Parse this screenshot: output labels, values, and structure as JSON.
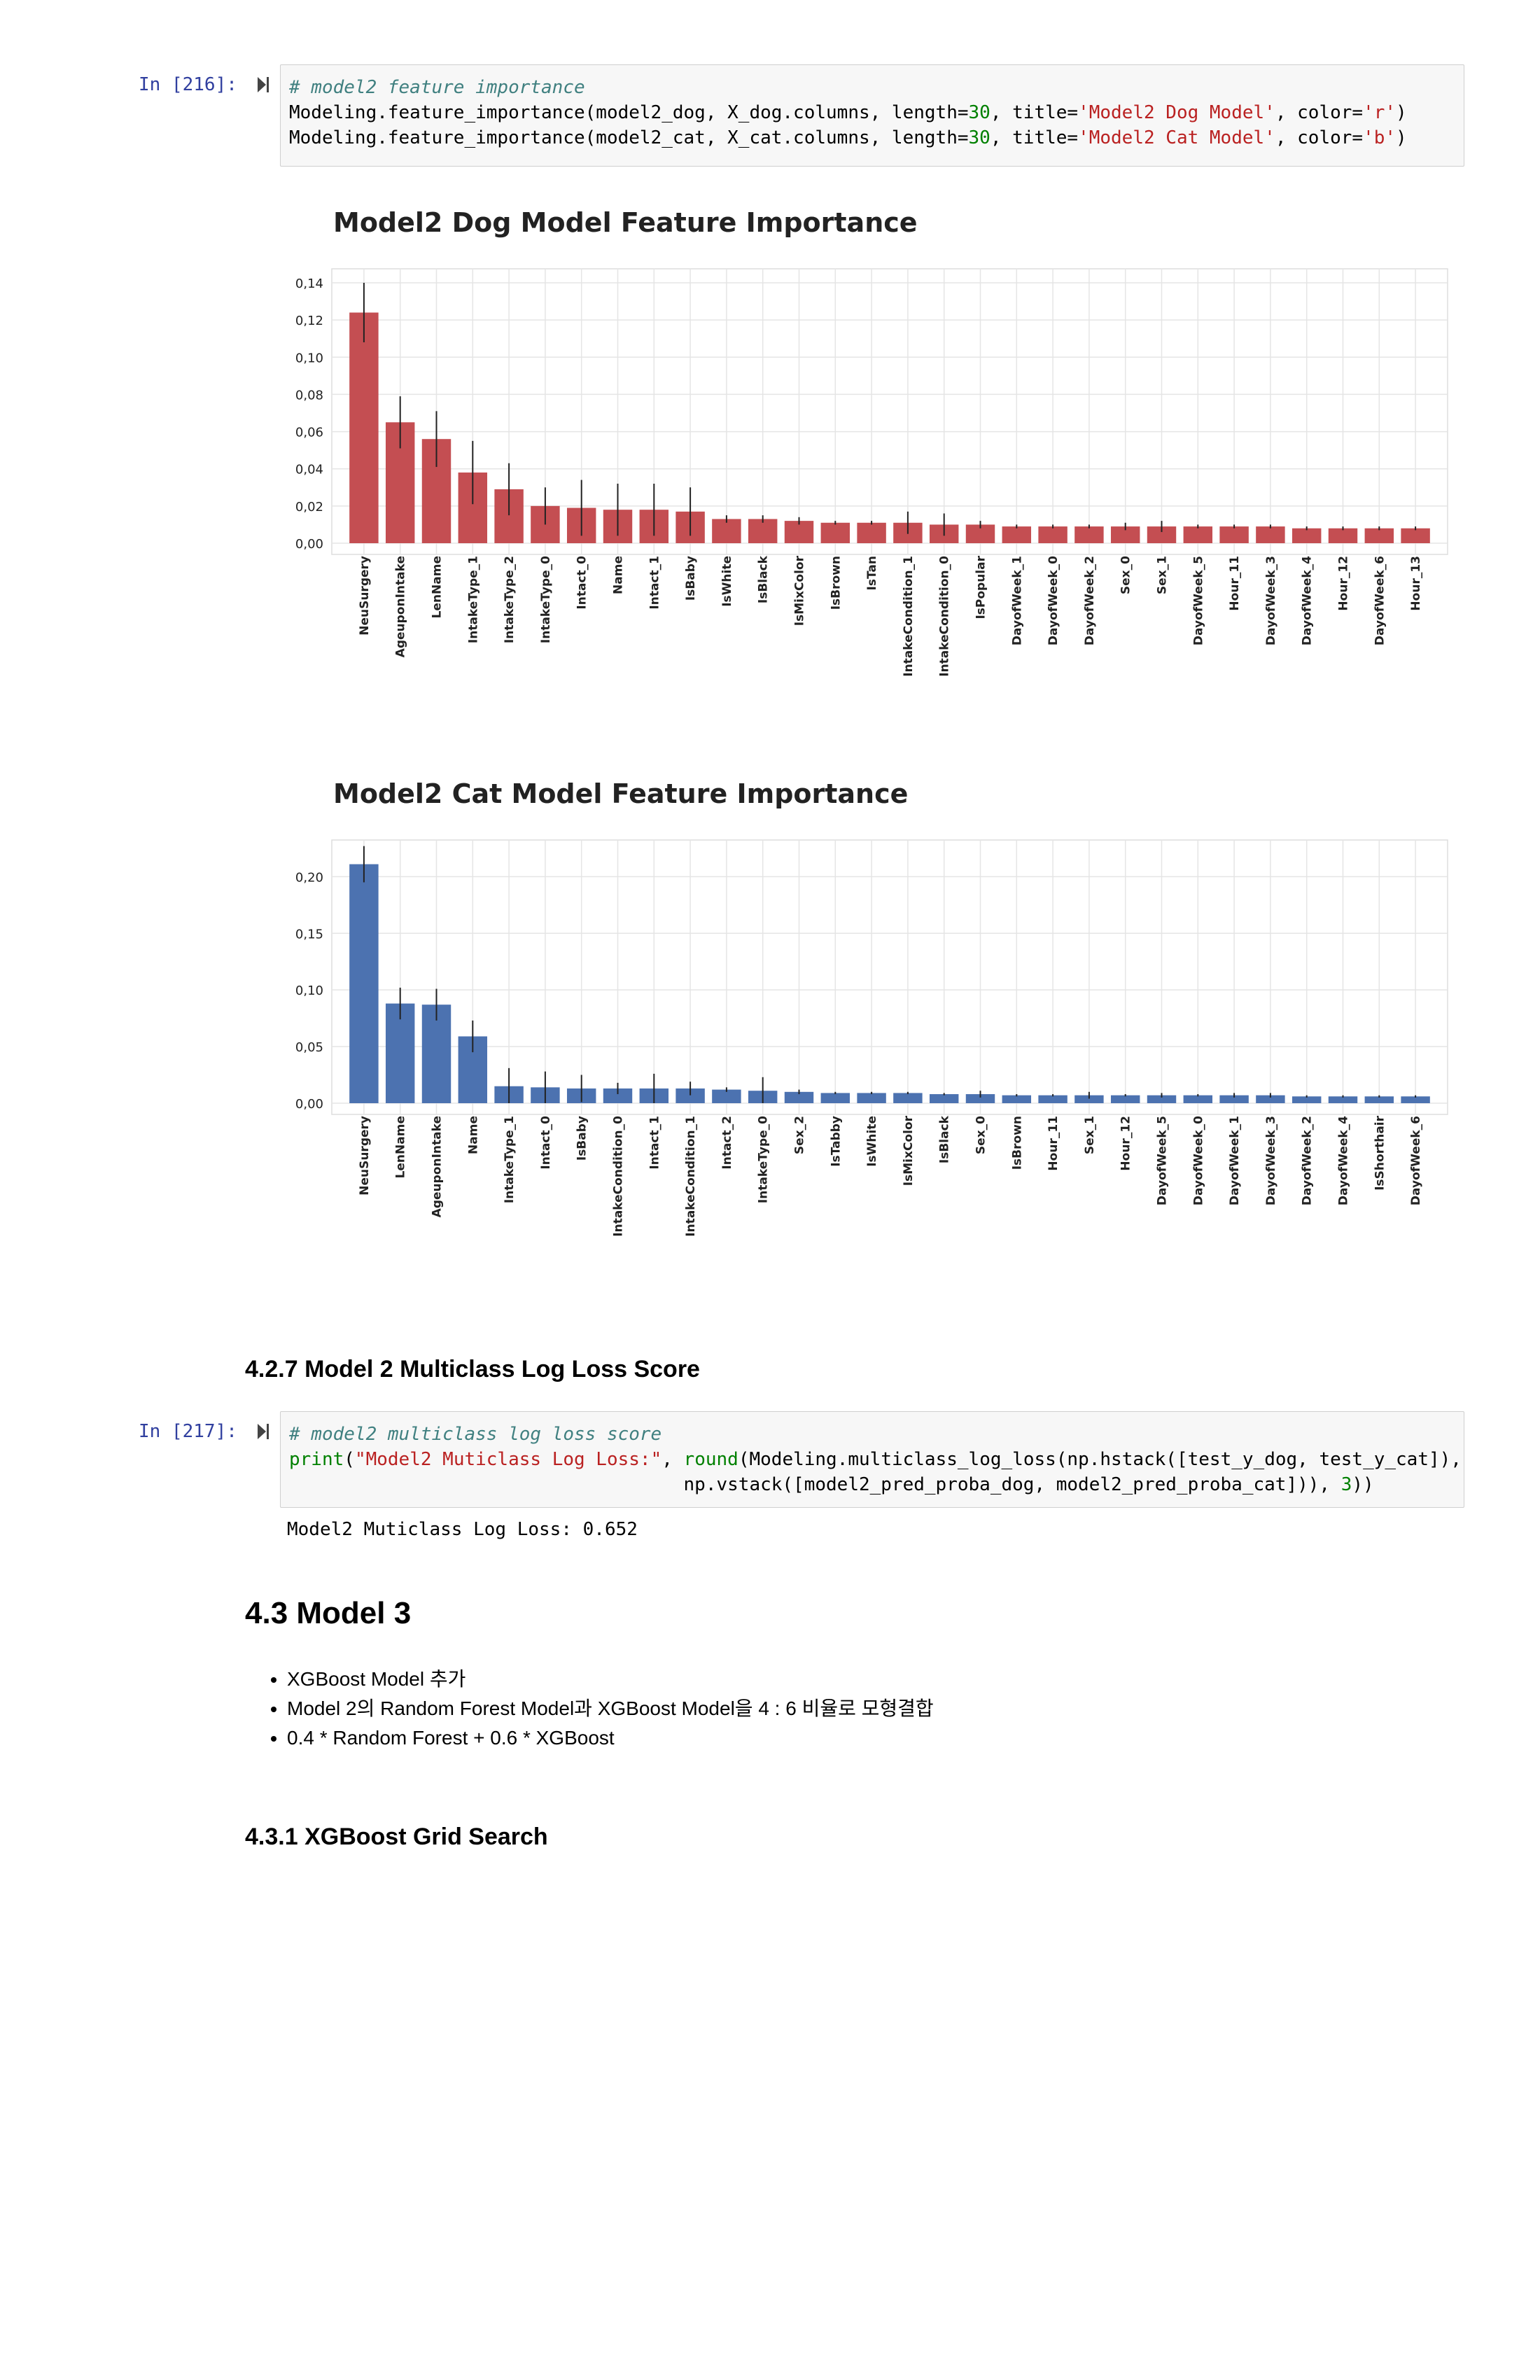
{
  "cells": [
    {
      "prompt": "In [216]:",
      "code": [
        [
          {
            "t": "cm",
            "v": "# model2 feature importance"
          }
        ],
        [
          {
            "t": "",
            "v": "Modeling.feature_importance(model2_dog, X_dog.columns, length="
          },
          {
            "t": "nm",
            "v": "30"
          },
          {
            "t": "",
            "v": ", title="
          },
          {
            "t": "st",
            "v": "'Model2 Dog Model'"
          },
          {
            "t": "",
            "v": ", color="
          },
          {
            "t": "st",
            "v": "'r'"
          },
          {
            "t": "",
            "v": ")"
          }
        ],
        [
          {
            "t": "",
            "v": "Modeling.feature_importance(model2_cat, X_cat.columns, length="
          },
          {
            "t": "nm",
            "v": "30"
          },
          {
            "t": "",
            "v": ", title="
          },
          {
            "t": "st",
            "v": "'Model2 Cat Model'"
          },
          {
            "t": "",
            "v": ", color="
          },
          {
            "t": "st",
            "v": "'b'"
          },
          {
            "t": "",
            "v": ")"
          }
        ]
      ]
    },
    {
      "prompt": "In [217]:",
      "code": [
        [
          {
            "t": "cm",
            "v": "# model2 multiclass log loss score"
          }
        ],
        [
          {
            "t": "nm",
            "v": "print"
          },
          {
            "t": "",
            "v": "("
          },
          {
            "t": "st",
            "v": "\"Model2 Muticlass Log Loss:\""
          },
          {
            "t": "",
            "v": ", "
          },
          {
            "t": "nm",
            "v": "round"
          },
          {
            "t": "",
            "v": "(Modeling.multiclass_log_loss(np.hstack([test_y_dog, test_y_cat]),"
          }
        ],
        [
          {
            "t": "",
            "v": "                                    np.vstack([model2_pred_proba_dog, model2_pred_proba_cat])), "
          },
          {
            "t": "nm",
            "v": "3"
          },
          {
            "t": "",
            "v": "))"
          }
        ]
      ],
      "output": "Model2 Muticlass Log Loss: 0.652"
    }
  ],
  "headings": {
    "h_427": "4.2.7 Model 2 Multiclass Log Loss Score",
    "h_43": "4.3 Model 3",
    "h_431": "4.3.1 XGBoost Grid Search"
  },
  "bullets": [
    "XGBoost Model 추가",
    "Model 2의 Random Forest Model과 XGBoost Model을 4 : 6 비율로 모형결합",
    "0.4 * Random Forest + 0.6 * XGBoost"
  ],
  "chart_data": [
    {
      "type": "bar",
      "title": "Model2 Dog Model Feature Importance",
      "color": "#c44e52",
      "ylim": [
        0,
        0.14
      ],
      "yticks": [
        "0,00",
        "0,02",
        "0,04",
        "0,06",
        "0,08",
        "0,10",
        "0,12",
        "0,14"
      ],
      "grid": true,
      "categories": [
        "NeuSurgery",
        "AgeuponIntake",
        "LenName",
        "IntakeType_1",
        "IntakeType_2",
        "IntakeType_0",
        "Intact_0",
        "Name",
        "Intact_1",
        "IsBaby",
        "IsWhite",
        "IsBlack",
        "IsMixColor",
        "IsBrown",
        "IsTan",
        "IntakeCondition_1",
        "IntakeCondition_0",
        "IsPopular",
        "DayofWeek_1",
        "DayofWeek_0",
        "DayofWeek_2",
        "Sex_0",
        "Sex_1",
        "DayofWeek_5",
        "Hour_11",
        "DayofWeek_3",
        "DayofWeek_4",
        "Hour_12",
        "DayofWeek_6",
        "Hour_13"
      ],
      "values": [
        0.124,
        0.065,
        0.056,
        0.038,
        0.029,
        0.02,
        0.019,
        0.018,
        0.018,
        0.017,
        0.013,
        0.013,
        0.012,
        0.011,
        0.011,
        0.011,
        0.01,
        0.01,
        0.009,
        0.009,
        0.009,
        0.009,
        0.009,
        0.009,
        0.009,
        0.009,
        0.008,
        0.008,
        0.008,
        0.008
      ],
      "errors": [
        0.016,
        0.014,
        0.015,
        0.017,
        0.014,
        0.01,
        0.015,
        0.014,
        0.014,
        0.013,
        0.002,
        0.002,
        0.002,
        0.001,
        0.001,
        0.006,
        0.006,
        0.002,
        0.001,
        0.001,
        0.001,
        0.002,
        0.003,
        0.001,
        0.001,
        0.001,
        0.001,
        0.001,
        0.001,
        0.001
      ]
    },
    {
      "type": "bar",
      "title": "Model2 Cat Model Feature Importance",
      "color": "#4c72b0",
      "ylim": [
        0,
        0.22
      ],
      "yticks": [
        "0,00",
        "0,05",
        "0,10",
        "0,15",
        "0,20"
      ],
      "grid": true,
      "categories": [
        "NeuSurgery",
        "LenName",
        "AgeuponIntake",
        "Name",
        "IntakeType_1",
        "Intact_0",
        "IsBaby",
        "IntakeCondition_0",
        "Intact_1",
        "IntakeCondition_1",
        "Intact_2",
        "IntakeType_0",
        "Sex_2",
        "IsTabby",
        "IsWhite",
        "IsMixColor",
        "IsBlack",
        "Sex_0",
        "IsBrown",
        "Hour_11",
        "Sex_1",
        "Hour_12",
        "DayofWeek_5",
        "DayofWeek_0",
        "DayofWeek_1",
        "DayofWeek_3",
        "DayofWeek_2",
        "DayofWeek_4",
        "IsShorthair",
        "DayofWeek_6"
      ],
      "values": [
        0.211,
        0.088,
        0.087,
        0.059,
        0.015,
        0.014,
        0.013,
        0.013,
        0.013,
        0.013,
        0.012,
        0.011,
        0.01,
        0.009,
        0.009,
        0.009,
        0.008,
        0.008,
        0.007,
        0.007,
        0.007,
        0.007,
        0.007,
        0.007,
        0.007,
        0.007,
        0.006,
        0.006,
        0.006,
        0.006
      ],
      "errors": [
        0.016,
        0.014,
        0.014,
        0.014,
        0.016,
        0.014,
        0.012,
        0.005,
        0.013,
        0.006,
        0.002,
        0.012,
        0.002,
        0.001,
        0.001,
        0.001,
        0.001,
        0.003,
        0.001,
        0.001,
        0.003,
        0.001,
        0.002,
        0.001,
        0.002,
        0.002,
        0.001,
        0.001,
        0.001,
        0.001
      ]
    }
  ]
}
